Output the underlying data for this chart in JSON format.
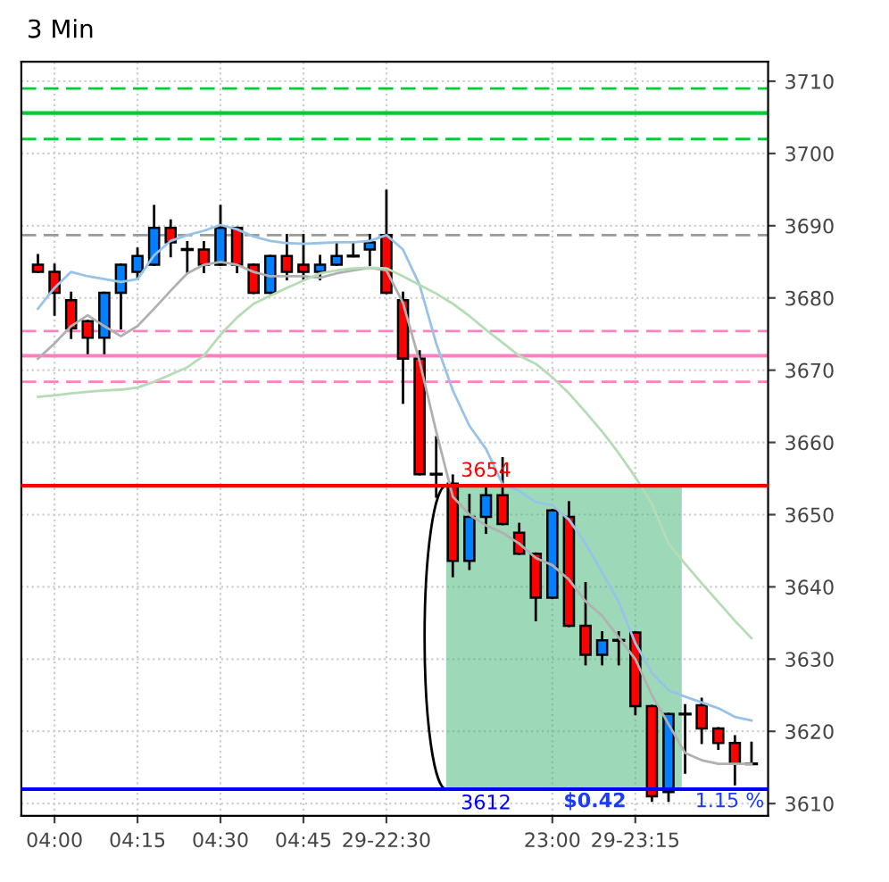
{
  "chart_data": {
    "type": "candlestick",
    "title": "3 Min",
    "categories": [
      null,
      "04:00",
      null,
      null,
      null,
      null,
      "04:15",
      null,
      null,
      null,
      null,
      "04:30",
      null,
      null,
      null,
      null,
      "04:45",
      null,
      null,
      null,
      null,
      "29-22:30",
      null,
      null,
      null,
      null,
      null,
      null,
      null,
      null,
      null,
      "23:00",
      null,
      null,
      null,
      null,
      "29-23:15",
      null,
      null,
      null,
      null,
      null,
      null,
      null
    ],
    "ohlc": [
      [
        3684.6,
        3685.9,
        3683.6,
        3683.6
      ],
      [
        3683.6,
        3684.6,
        3677.7,
        3680.7
      ],
      [
        3679.7,
        3680.7,
        3674.5,
        3675.8
      ],
      [
        3676.8,
        3676.8,
        3672.4,
        3674.5
      ],
      [
        3674.5,
        3680.7,
        3672.4,
        3680.7
      ],
      [
        3680.7,
        3684.6,
        3675.8,
        3684.6
      ],
      [
        3683.6,
        3686.8,
        3682.6,
        3685.8
      ],
      [
        3684.6,
        3692.7,
        3684.6,
        3689.7
      ],
      [
        3689.7,
        3690.7,
        3685.8,
        3687.7
      ],
      [
        3686.7,
        3687.7,
        3683.6,
        3686.7
      ],
      [
        3686.7,
        3687.7,
        3683.6,
        3684.6
      ],
      [
        3684.6,
        3692.7,
        3684.6,
        3689.7
      ],
      [
        3689.7,
        3689.7,
        3683.6,
        3684.6
      ],
      [
        3684.6,
        3684.6,
        3680.7,
        3680.7
      ],
      [
        3680.7,
        3685.8,
        3680.7,
        3685.8
      ],
      [
        3685.8,
        3688.7,
        3682.6,
        3683.6
      ],
      [
        3684.6,
        3688.7,
        3682.6,
        3683.6
      ],
      [
        3683.6,
        3685.8,
        3682.6,
        3684.6
      ],
      [
        3684.6,
        3687.7,
        3684.6,
        3685.8
      ],
      [
        3685.8,
        3687.7,
        3685.8,
        3685.8
      ],
      [
        3686.7,
        3688.7,
        3684.6,
        3687.7
      ],
      [
        3688.7,
        3694.8,
        3680.7,
        3680.7
      ],
      [
        3679.7,
        3680.7,
        3665.5,
        3671.6
      ],
      [
        3671.6,
        3672.6,
        3655.6,
        3655.6
      ],
      [
        3655.6,
        3660.7,
        3652.5,
        3655.6
      ],
      [
        3654.3,
        3655.4,
        3641.5,
        3643.6
      ],
      [
        3643.6,
        3652.7,
        3642.5,
        3649.7
      ],
      [
        3649.7,
        3653.7,
        3647.5,
        3652.7
      ],
      [
        3652.7,
        3657.8,
        3648.7,
        3648.7
      ],
      [
        3647.5,
        3648.7,
        3644.6,
        3644.6
      ],
      [
        3644.6,
        3644.6,
        3635.4,
        3638.5
      ],
      [
        3638.5,
        3650.6,
        3638.5,
        3650.6
      ],
      [
        3649.7,
        3651.7,
        3634.6,
        3634.6
      ],
      [
        3634.6,
        3640.5,
        3629.3,
        3630.6
      ],
      [
        3630.6,
        3633.7,
        3629.3,
        3632.6
      ],
      [
        3632.6,
        3633.7,
        3629.3,
        3632.6
      ],
      [
        3633.7,
        3633.7,
        3622.4,
        3623.5
      ],
      [
        3623.5,
        3623.5,
        3610.4,
        3611.0
      ],
      [
        3611.6,
        3622.4,
        3610.4,
        3622.4
      ],
      [
        3622.4,
        3623.6,
        3614.3,
        3622.4
      ],
      [
        3623.6,
        3624.5,
        3618.4,
        3620.4
      ],
      [
        3620.4,
        3620.4,
        3617.6,
        3618.4
      ],
      [
        3618.4,
        3619.3,
        3612.7,
        3615.5
      ],
      [
        3615.5,
        3618.4,
        3615.5,
        3615.5
      ]
    ],
    "colors": [
      "#ff0000",
      "#ff0000",
      "#ff0000",
      "#ff0000",
      "#0080ff",
      "#0080ff",
      "#0080ff",
      "#0080ff",
      "#ff0000",
      "#000000",
      "#ff0000",
      "#0080ff",
      "#ff0000",
      "#ff0000",
      "#0080ff",
      "#ff0000",
      "#ff0000",
      "#0080ff",
      "#0080ff",
      "#000000",
      "#0080ff",
      "#ff0000",
      "#ff0000",
      "#ff0000",
      "#000000",
      "#ff0000",
      "#0080ff",
      "#0080ff",
      "#ff0000",
      "#ff0000",
      "#ff0000",
      "#0080ff",
      "#ff0000",
      "#ff0000",
      "#0080ff",
      "#000000",
      "#ff0000",
      "#ff0000",
      "#0080ff",
      "#000000",
      "#ff0000",
      "#ff0000",
      "#ff0000",
      "#000000"
    ],
    "series": [
      {
        "type": "line",
        "color": "#99c2e8",
        "values": [
          3678.5,
          3681.4,
          3683.6,
          3683.0,
          3682.6,
          3682.2,
          3682.6,
          3685.9,
          3687.9,
          3688.7,
          3689.3,
          3690.1,
          3689.5,
          3688.5,
          3687.9,
          3687.6,
          3687.5,
          3687.6,
          3687.7,
          3687.7,
          3687.9,
          3688.7,
          3686.7,
          3681.8,
          3673.7,
          3667.2,
          3662.3,
          3659.1,
          3654.2,
          3653.3,
          3651.7,
          3651.3,
          3649.3,
          3646.0,
          3642.0,
          3637.9,
          3632.2,
          3628.1,
          3625.7,
          3624.8,
          3624.0,
          3623.2,
          3622.0,
          3621.5
        ]
      },
      {
        "type": "line",
        "color": "#b0b0b0",
        "values": [
          3671.6,
          3673.7,
          3676.1,
          3677.6,
          3676.1,
          3674.7,
          3676.1,
          3678.5,
          3681.0,
          3683.4,
          3684.6,
          3685.0,
          3684.6,
          3683.6,
          3683.0,
          3683.0,
          3683.0,
          3682.8,
          3683.4,
          3683.8,
          3684.2,
          3683.8,
          3679.3,
          3671.2,
          3661.5,
          3652.5,
          3650.0,
          3648.5,
          3647.5,
          3646.0,
          3644.0,
          3643.0,
          3641.0,
          3638.0,
          3636.0,
          3633.0,
          3630.0,
          3625.0,
          3621.0,
          3617.0,
          3616.0,
          3615.5,
          3615.5,
          3615.5
        ]
      },
      {
        "type": "line",
        "color": "#b5dcb5",
        "values": [
          3666.3,
          3666.5,
          3666.8,
          3667.0,
          3667.2,
          3667.3,
          3667.6,
          3668.4,
          3669.4,
          3670.4,
          3672.0,
          3674.9,
          3677.3,
          3679.2,
          3680.3,
          3681.4,
          3682.4,
          3683.4,
          3683.8,
          3684.1,
          3684.2,
          3684.1,
          3683.0,
          3681.8,
          3680.6,
          3679.2,
          3677.5,
          3675.6,
          3673.8,
          3672.0,
          3670.9,
          3669.0,
          3666.8,
          3664.2,
          3661.5,
          3658.5,
          3655.2,
          3651.5,
          3646.0,
          3643.2,
          3640.5,
          3637.9,
          3635.3,
          3632.9
        ]
      }
    ],
    "ylim": [
      3608.3,
      3712.7
    ],
    "yticks": [
      3610,
      3620,
      3630,
      3640,
      3650,
      3660,
      3670,
      3680,
      3690,
      3700,
      3710
    ],
    "grid": true,
    "ref_lines": [
      {
        "axis": "y",
        "value": 3709,
        "color": "#00cc33",
        "line_style": "dashed"
      },
      {
        "axis": "y",
        "value": 3705.6,
        "color": "#00cc33",
        "line_style": "solid"
      },
      {
        "axis": "y",
        "value": 3702,
        "color": "#00cc33",
        "line_style": "dashed"
      },
      {
        "axis": "y",
        "value": 3688.7,
        "color": "#999999",
        "line_style": "dashed"
      },
      {
        "axis": "y",
        "value": 3675.4,
        "color": "#ff80c0",
        "line_style": "dashed"
      },
      {
        "axis": "y",
        "value": 3672,
        "color": "#ff80c0",
        "line_style": "solid"
      },
      {
        "axis": "y",
        "value": 3668.4,
        "color": "#ff80c0",
        "line_style": "dashed"
      },
      {
        "axis": "y",
        "value": 3654,
        "label": "3654",
        "color": "#ff0000",
        "line_style": "solid"
      },
      {
        "axis": "y",
        "value": 3612,
        "label": "3612",
        "color": "#0000ff",
        "line_style": "solid"
      }
    ],
    "bands": [
      {
        "axis": "y",
        "from": 3612,
        "to": 3654,
        "color": "#3cb371"
      }
    ],
    "annotations": [
      "$0.42",
      "1.15 %"
    ]
  }
}
